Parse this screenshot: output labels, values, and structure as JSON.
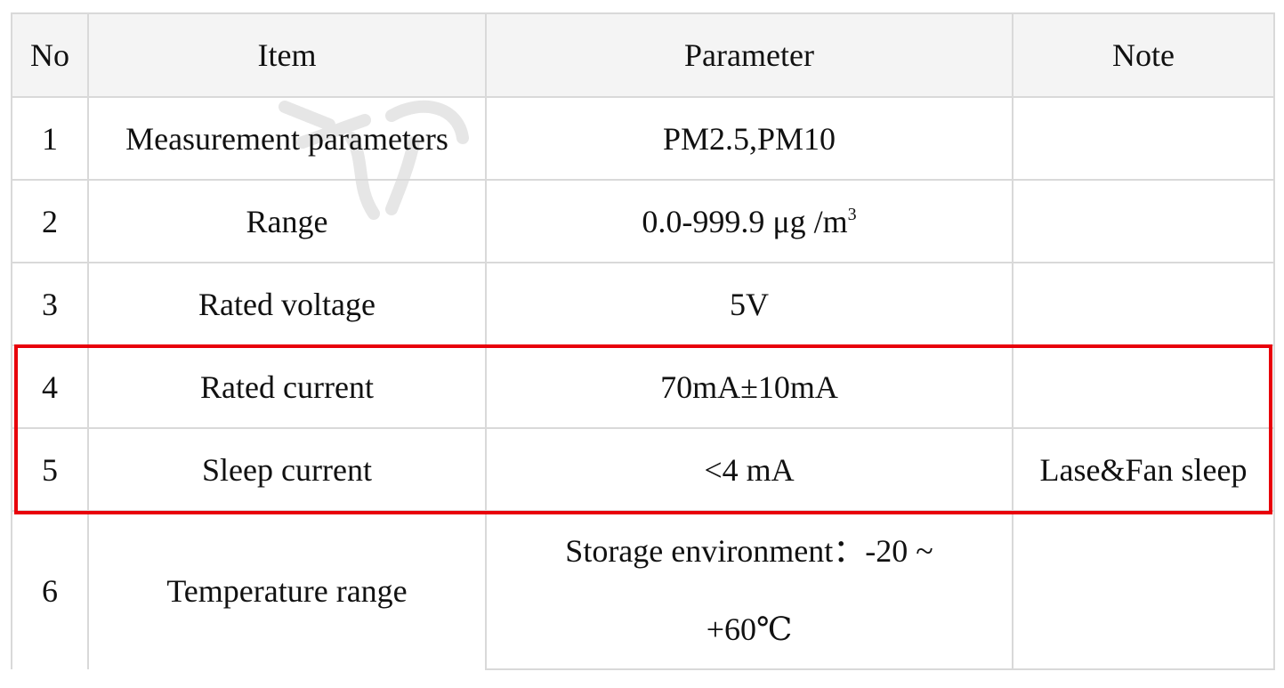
{
  "table": {
    "headers": [
      "No",
      "Item",
      "Parameter",
      "Note"
    ],
    "rows": [
      {
        "no": "1",
        "item": "Measurement parameters",
        "parameter": "PM2.5,PM10",
        "note": ""
      },
      {
        "no": "2",
        "item": "Range",
        "parameter": "0.0-999.9 μg /m",
        "parameter_sup": "3",
        "note": ""
      },
      {
        "no": "3",
        "item": "Rated voltage",
        "parameter": "5V",
        "note": ""
      },
      {
        "no": "4",
        "item": "Rated current",
        "parameter": "70mA±10mA",
        "note": ""
      },
      {
        "no": "5",
        "item": "Sleep current",
        "parameter": "<4 mA",
        "note": "Lase&Fan sleep"
      },
      {
        "no": "6",
        "item": "Temperature range",
        "parameter_line1": "Storage environment：-20 ~",
        "parameter_line2": "+60℃",
        "note": ""
      }
    ]
  },
  "highlight": {
    "color": "#e8000a",
    "rows": [
      "4",
      "5"
    ]
  },
  "colors": {
    "border": "#d9d9d9",
    "header_bg": "#f4f4f4",
    "text": "#111111"
  }
}
